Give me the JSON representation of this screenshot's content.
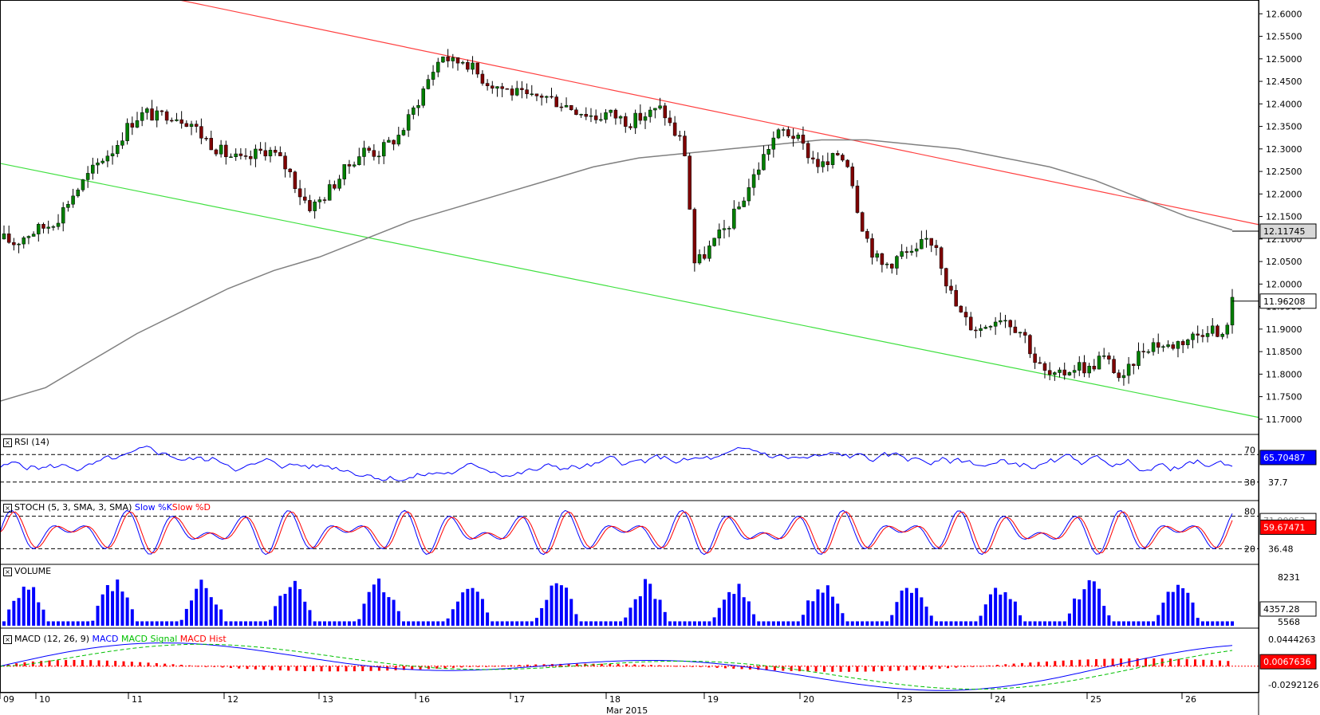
{
  "chart_data": {
    "type": "candlestick",
    "main": {
      "y_ticks": [
        "12.6000",
        "12.5500",
        "12.5000",
        "12.4500",
        "12.4000",
        "12.3500",
        "12.3000",
        "12.2500",
        "12.2000",
        "12.1500",
        "12.1000",
        "12.0500",
        "12.0000",
        "11.9500",
        "11.9000",
        "11.8500",
        "11.8000",
        "11.7500",
        "11.7000"
      ],
      "ylim": [
        11.675,
        12.62
      ],
      "overlays": {
        "ma_badge": "12.11745",
        "price_badge": "11.96208"
      },
      "close_series": [
        12.1,
        12.09,
        12.11,
        12.12,
        12.13,
        12.15,
        12.19,
        12.22,
        12.25,
        12.28,
        12.3,
        12.34,
        12.37,
        12.38,
        12.37,
        12.38,
        12.37,
        12.36,
        12.33,
        12.31,
        12.29,
        12.28,
        12.27,
        12.29,
        12.3,
        12.28,
        12.25,
        12.2,
        12.17,
        12.19,
        12.22,
        12.25,
        12.28,
        12.3,
        12.29,
        12.31,
        12.33,
        12.37,
        12.42,
        12.47,
        12.51,
        12.49,
        12.5,
        12.47,
        12.45,
        12.44,
        12.43,
        12.42,
        12.41,
        12.42,
        12.41,
        12.4,
        12.39,
        12.38,
        12.37,
        12.38,
        12.37,
        12.36,
        12.37,
        12.38,
        12.39,
        12.34,
        12.31,
        12.04,
        12.07,
        12.1,
        12.13,
        12.17,
        12.22,
        12.27,
        12.32,
        12.34,
        12.33,
        12.3,
        12.27,
        12.26,
        12.29,
        12.27,
        12.15,
        12.08,
        12.04,
        12.05,
        12.07,
        12.06,
        12.1,
        12.09,
        12.0,
        11.94,
        11.91,
        11.9,
        11.92,
        11.93,
        11.91,
        11.89,
        11.83,
        11.8,
        11.79,
        11.81,
        11.82,
        11.81,
        11.84,
        11.82,
        11.78,
        11.83,
        11.86,
        11.87,
        11.86,
        11.87,
        11.88,
        11.89,
        11.91,
        11.87,
        11.96
      ],
      "ma_series": [
        11.74,
        11.77,
        11.83,
        11.89,
        11.94,
        11.99,
        12.03,
        12.06,
        12.1,
        12.14,
        12.17,
        12.2,
        12.23,
        12.26,
        12.28,
        12.29,
        12.3,
        12.31,
        12.32,
        12.32,
        12.31,
        12.3,
        12.28,
        12.26,
        12.23,
        12.19,
        12.15,
        12.12
      ],
      "channel_upper": [
        12.635,
        12.132
      ],
      "channel_lower": [
        12.268,
        11.704
      ]
    },
    "x_ticks": [
      "09",
      "10",
      "11",
      "12",
      "13",
      "16",
      "17",
      "18",
      "19",
      "20",
      "23",
      "24",
      "25",
      "26"
    ],
    "x_caption": "Mar 2015",
    "rsi": {
      "label": "RSI (14)",
      "value_badge": "65.70487",
      "levels": [
        "70",
        "30",
        "37.7"
      ]
    },
    "stoch": {
      "label": "STOCH (5, 3, SMA, 3, SMA)",
      "k_label": "Slow %K",
      "d_label": "Slow %D",
      "value_badge": "59.67471",
      "partial_badge": "71.90953",
      "levels": [
        "80",
        "20",
        "36.48"
      ]
    },
    "volume": {
      "label": "VOLUME",
      "value_badge": "4357.28",
      "max_label": "8231",
      "partial_label": "5568"
    },
    "macd": {
      "label": "MACD (12, 26, 9)",
      "macd_label": "MACD",
      "signal_label": "MACD Signal",
      "hist_label": "MACD Hist",
      "top_label": "0.0444263",
      "badge": "0.0067636",
      "bottom_label": "-0.0292126"
    }
  },
  "colors": {
    "up": "#007f00",
    "down": "#7f0000",
    "upper_channel": "#ff4040",
    "lower_channel": "#40e040",
    "ma": "#808080",
    "rsi": "#0000ff",
    "stoch_k": "#0000ff",
    "stoch_d": "#ff0000",
    "volume": "#0000ff",
    "macd": "#0000ff",
    "signal": "#00c000",
    "hist": "#ff0000"
  }
}
